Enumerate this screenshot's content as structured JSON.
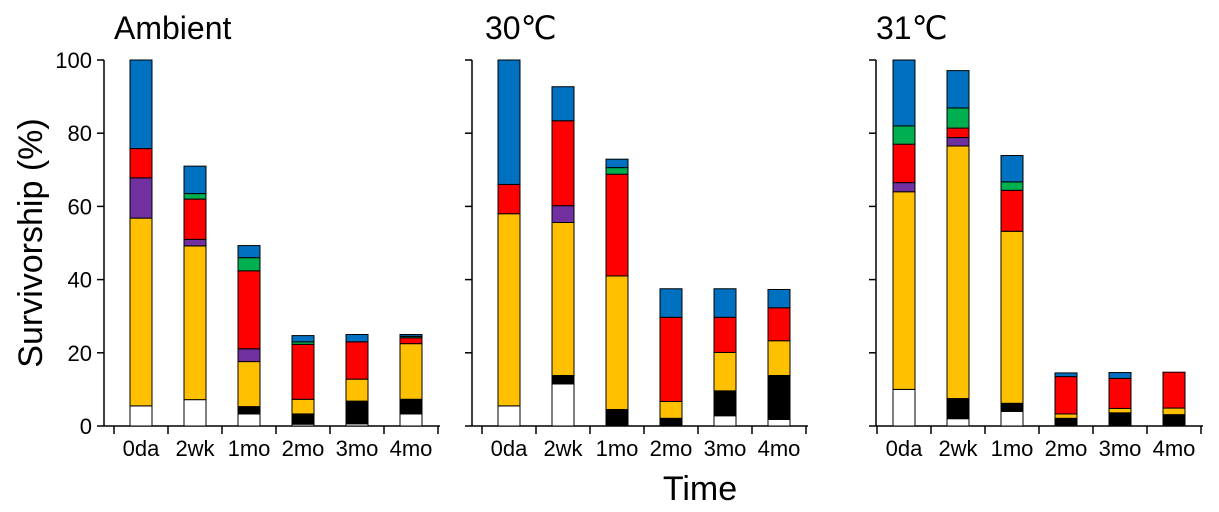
{
  "figure": {
    "ylabel": "Survivorship (%)",
    "xlabel": "Time"
  },
  "colors": {
    "white": "#ffffff",
    "black": "#000000",
    "orange": "#ffc000",
    "purple": "#7030a0",
    "red": "#ff0000",
    "green": "#00b050",
    "blue": "#0070c0"
  },
  "chart_data": [
    {
      "type": "bar",
      "stacked": true,
      "title": "Ambient",
      "categories": [
        "0da",
        "2wk",
        "1mo",
        "2mo",
        "3mo",
        "4mo"
      ],
      "ylim": [
        0,
        100
      ],
      "yticks": [
        "0",
        "20",
        "40",
        "60",
        "80",
        "100"
      ],
      "ytick_values": [
        0,
        20,
        40,
        60,
        80,
        100
      ],
      "ylabel": "Survivorship (%)",
      "grid": false,
      "series": [
        {
          "color": "#ffffff",
          "values": [
            5.5,
            7.2,
            3.3,
            0.5,
            0.6,
            3.3
          ]
        },
        {
          "color": "#000000",
          "values": [
            0,
            0,
            2,
            2.8,
            6.2,
            4
          ]
        },
        {
          "color": "#ffc000",
          "values": [
            51.3,
            42,
            12.3,
            4,
            6,
            15.2
          ]
        },
        {
          "color": "#7030a0",
          "values": [
            11,
            1.8,
            3.5,
            0,
            0,
            0
          ]
        },
        {
          "color": "#ff0000",
          "values": [
            8,
            11,
            21.3,
            15,
            10.2,
            1.6
          ]
        },
        {
          "color": "#00b050",
          "values": [
            0,
            1.5,
            3.6,
            0.7,
            0,
            0.4
          ]
        },
        {
          "color": "#0070c0",
          "values": [
            24.2,
            7.5,
            3.3,
            1.7,
            2,
            0.5
          ]
        }
      ]
    },
    {
      "type": "bar",
      "stacked": true,
      "title": "30℃",
      "categories": [
        "0da",
        "2wk",
        "1mo",
        "2mo",
        "3mo",
        "4mo"
      ],
      "ylim": [
        0,
        100
      ],
      "grid": false,
      "series": [
        {
          "color": "#ffffff",
          "values": [
            5.5,
            11.5,
            0.3,
            0.3,
            2.8,
            1.8
          ]
        },
        {
          "color": "#000000",
          "values": [
            0,
            2.3,
            4.2,
            1.8,
            6.8,
            12
          ]
        },
        {
          "color": "#ffc000",
          "values": [
            52.5,
            41.8,
            36.5,
            4.6,
            10.5,
            9.5
          ]
        },
        {
          "color": "#7030a0",
          "values": [
            0,
            4.6,
            0,
            0,
            0,
            0
          ]
        },
        {
          "color": "#ff0000",
          "values": [
            8,
            23.2,
            27.8,
            23,
            9.6,
            9
          ]
        },
        {
          "color": "#00b050",
          "values": [
            0,
            0,
            1.8,
            0,
            0,
            0
          ]
        },
        {
          "color": "#0070c0",
          "values": [
            34,
            9.3,
            2.3,
            7.8,
            7.8,
            5
          ]
        }
      ]
    },
    {
      "type": "bar",
      "stacked": true,
      "title": "31℃",
      "categories": [
        "0da",
        "2wk",
        "1mo",
        "2mo",
        "3mo",
        "4mo"
      ],
      "ylim": [
        0,
        100
      ],
      "grid": false,
      "series": [
        {
          "color": "#ffffff",
          "values": [
            10,
            2,
            4,
            0.3,
            0,
            0.3
          ]
        },
        {
          "color": "#000000",
          "values": [
            0,
            5.5,
            2.2,
            1.8,
            3.6,
            2.8
          ]
        },
        {
          "color": "#ffc000",
          "values": [
            54,
            69,
            47,
            1.2,
            1.2,
            1.8
          ]
        },
        {
          "color": "#7030a0",
          "values": [
            2.5,
            2.3,
            0,
            0,
            0,
            0
          ]
        },
        {
          "color": "#ff0000",
          "values": [
            10.5,
            2.6,
            11.2,
            10.2,
            8.2,
            9.8
          ]
        },
        {
          "color": "#00b050",
          "values": [
            5,
            5.5,
            2.3,
            0,
            0,
            0
          ]
        },
        {
          "color": "#0070c0",
          "values": [
            18,
            10.2,
            7.2,
            1,
            1.6,
            0
          ]
        }
      ]
    }
  ]
}
